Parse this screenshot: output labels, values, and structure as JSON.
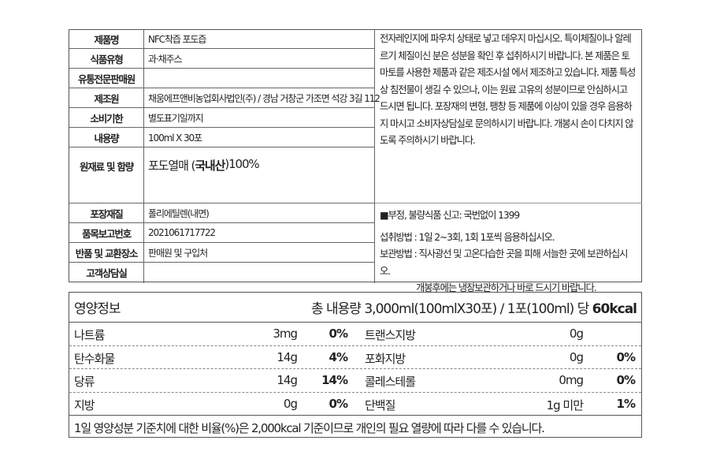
{
  "info_rows": [
    {
      "label": "제품명",
      "value": "NFC착즙 포도즙"
    },
    {
      "label": "식품유형",
      "value": "과·채주스"
    },
    {
      "label": "유통전문판매원",
      "value": ""
    },
    {
      "label": "제조원",
      "value": "채움에프앤비농업회사법인(주) / 경남 거창군 가조면 석강 3길 112"
    },
    {
      "label": "소비기한",
      "value": "별도표기일까지"
    },
    {
      "label": "내용량",
      "value": "100ml X 30포"
    },
    {
      "label": "원재료 및 함량",
      "value_pre": "포도열매 (",
      "value_bold": "국내산",
      "value_post": ")100%"
    },
    {
      "label": "포장재질",
      "value": "폴리에틸렌(내면)"
    },
    {
      "label": "품목보고번호",
      "value": "2021061717722"
    },
    {
      "label": "반품 및 교환장소",
      "value": "판매원 및 구입처"
    },
    {
      "label": "고객상담실",
      "value": ""
    }
  ],
  "notice": {
    "caution": "전자레인지에 파우치 상태로 넣고 데우지 마십시오. 특이체질이나 알레르기 체질이신 분은 성분을 확인 후 섭취하시기 바랍니다. 본 제품은 토마토를 사용한 제품과 같은 제조시설 에서 제조하고 있습니다. 제품 특성상 침전물이 생길 수 있으나, 이는 원료 고유의 성분이므로 안심하시고 드시면 됩니다. 포장재의 변형, 팽창 등 제품에 이상이 있을 경우 음용하지 마시고 소비자상담실로 문의하시기 바랍니다. 개봉시 손이 다치지 않도록 주의하시기 바랍니다.",
    "report": "■부정, 불량식품 신고: 국번없이 1399",
    "intake": "섭취방법 : 1일 2~3회, 1회 1포씩 음용하십시오.",
    "storage": "보관방법 : 직사광선 및 고온다습한 곳을 피해 서늘한 곳에 보관하십시오.",
    "storage2": "개봉후에는 냉장보관하거나 바로 드시기 바랍니다."
  },
  "nutrition": {
    "title": "영양정보",
    "serving": "총 내용량 3,000ml(100mlX30포) / 1포(100ml) 당 ",
    "kcal": "60kcal",
    "rows": [
      {
        "l_name": "나트륨",
        "l_amt": "3mg",
        "l_pct": "0%",
        "r_name": "트랜스지방",
        "r_amt": "0g",
        "r_pct": ""
      },
      {
        "l_name": "탄수화물",
        "l_amt": "14g",
        "l_pct": "4%",
        "r_name": "포화지방",
        "r_amt": "0g",
        "r_pct": "0%"
      },
      {
        "l_name": "당류",
        "l_amt": "14g",
        "l_pct": "14%",
        "r_name": "콜레스테롤",
        "r_amt": "0mg",
        "r_pct": "0%"
      },
      {
        "l_name": "지방",
        "l_amt": "0g",
        "l_pct": "0%",
        "r_name": "단백질",
        "r_amt": "1g 미만",
        "r_pct": "1%"
      }
    ],
    "footnote": "1일 영양성분 기준치에 대한 비율(%)은 2,000kcal 기준이므로 개인의 필요 열량에 따라 다를 수 있습니다."
  }
}
